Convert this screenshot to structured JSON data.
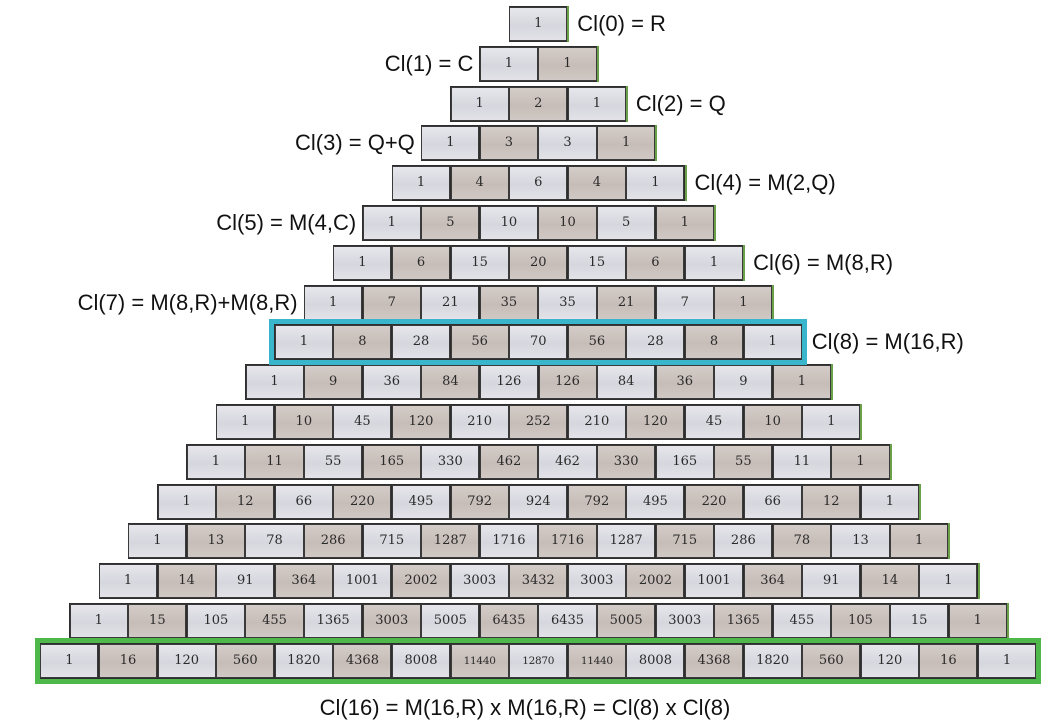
{
  "rows": [
    [
      "1"
    ],
    [
      "1",
      "1"
    ],
    [
      "1",
      "2",
      "1"
    ],
    [
      "1",
      "3",
      "3",
      "1"
    ],
    [
      "1",
      "4",
      "6",
      "4",
      "1"
    ],
    [
      "1",
      "5",
      "10",
      "10",
      "5",
      "1"
    ],
    [
      "1",
      "6",
      "15",
      "20",
      "15",
      "6",
      "1"
    ],
    [
      "1",
      "7",
      "21",
      "35",
      "35",
      "21",
      "7",
      "1"
    ],
    [
      "1",
      "8",
      "28",
      "56",
      "70",
      "56",
      "28",
      "8",
      "1"
    ],
    [
      "1",
      "9",
      "36",
      "84",
      "126",
      "126",
      "84",
      "36",
      "9",
      "1"
    ],
    [
      "1",
      "10",
      "45",
      "120",
      "210",
      "252",
      "210",
      "120",
      "45",
      "10",
      "1"
    ],
    [
      "1",
      "11",
      "55",
      "165",
      "330",
      "462",
      "462",
      "330",
      "165",
      "55",
      "11",
      "1"
    ],
    [
      "1",
      "12",
      "66",
      "220",
      "495",
      "792",
      "924",
      "792",
      "495",
      "220",
      "66",
      "12",
      "1"
    ],
    [
      "1",
      "13",
      "78",
      "286",
      "715",
      "1287",
      "1716",
      "1716",
      "1287",
      "715",
      "286",
      "78",
      "13",
      "1"
    ],
    [
      "1",
      "14",
      "91",
      "364",
      "1001",
      "2002",
      "3003",
      "3432",
      "3003",
      "2002",
      "1001",
      "364",
      "91",
      "14",
      "1"
    ],
    [
      "1",
      "15",
      "105",
      "455",
      "1365",
      "3003",
      "5005",
      "6435",
      "6435",
      "5005",
      "3003",
      "1365",
      "455",
      "105",
      "15",
      "1"
    ],
    [
      "1",
      "16",
      "120",
      "560",
      "1820",
      "4368",
      "8008",
      "11440",
      "12870",
      "11440",
      "8008",
      "4368",
      "1820",
      "560",
      "120",
      "16",
      "1"
    ]
  ],
  "labels": [
    {
      "row": 0,
      "side": "right",
      "text": "Cl(0) = R"
    },
    {
      "row": 1,
      "side": "left",
      "text": "Cl(1) = C"
    },
    {
      "row": 2,
      "side": "right",
      "text": "Cl(2) = Q"
    },
    {
      "row": 3,
      "side": "left",
      "text": "Cl(3) = Q+Q"
    },
    {
      "row": 4,
      "side": "right",
      "text": "Cl(4) = M(2,Q)"
    },
    {
      "row": 5,
      "side": "left",
      "text": "Cl(5) = M(4,C)"
    },
    {
      "row": 6,
      "side": "right",
      "text": "Cl(6) = M(8,R)"
    },
    {
      "row": 7,
      "side": "left",
      "text": "Cl(7) = M(8,R)+M(8,R)"
    },
    {
      "row": 8,
      "side": "right",
      "text": "Cl(8) = M(16,R)"
    }
  ],
  "caption": "Cl(16) = M(16,R) x M(16,R) = Cl(8) x Cl(8)",
  "highlights": [
    {
      "row": 8,
      "color": "#39b6cc"
    },
    {
      "row": 16,
      "color": "#4fb84a"
    }
  ]
}
